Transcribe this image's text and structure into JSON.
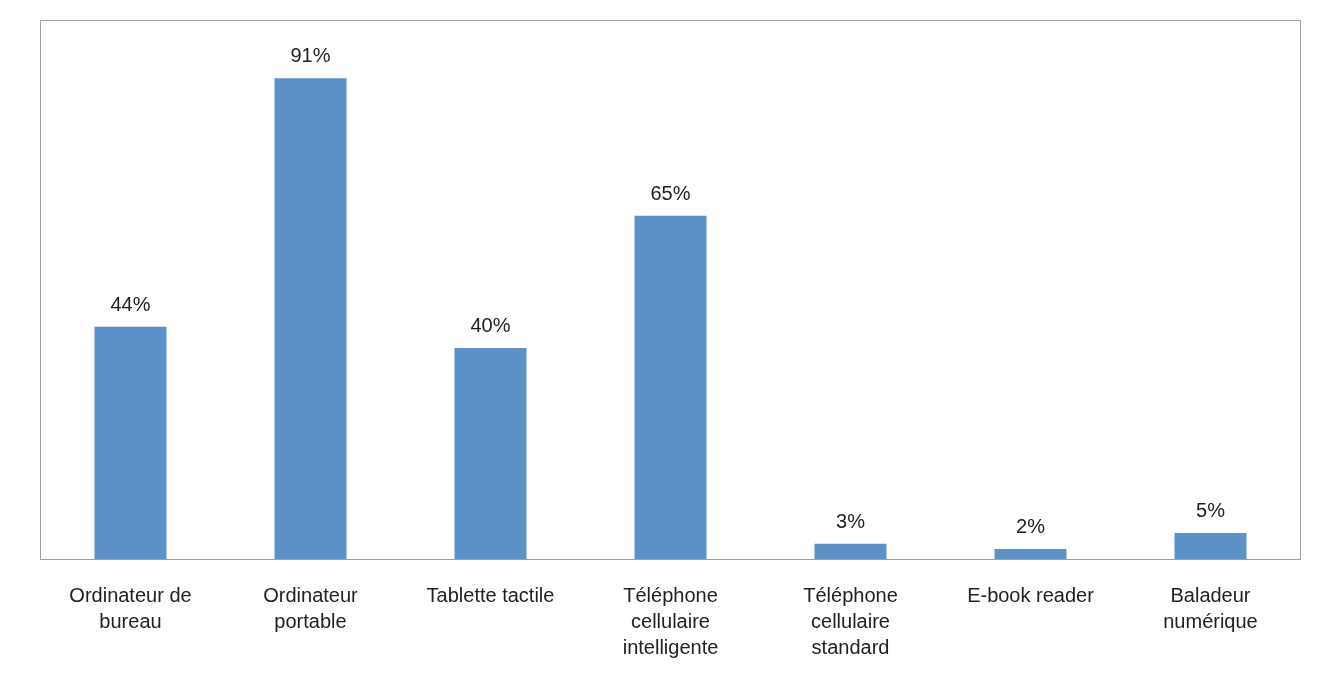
{
  "chart_data": {
    "type": "bar",
    "categories": [
      "Ordinateur de\nbureau",
      "Ordinateur\nportable",
      "Tablette tactile",
      "Téléphone\ncellulaire\nintelligente",
      "Téléphone\ncellulaire\nstandard",
      "E-book reader",
      "Baladeur\nnumérique"
    ],
    "values": [
      44,
      91,
      40,
      65,
      3,
      2,
      5
    ],
    "value_labels": [
      "44%",
      "91%",
      "40%",
      "65%",
      "3%",
      "2%",
      "5%"
    ],
    "color": "#5b91c6",
    "grid": false
  }
}
